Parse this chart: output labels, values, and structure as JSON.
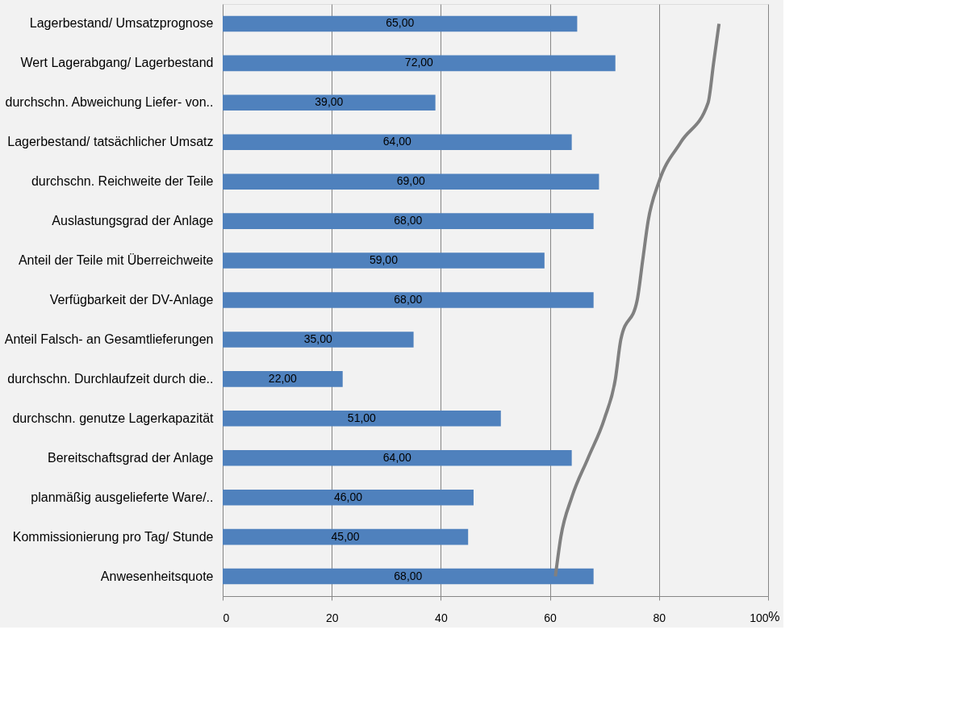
{
  "chart_data": {
    "type": "bar",
    "orientation": "horizontal",
    "xlabel": "%",
    "categories": [
      "Lagerbestand/ Umsatzprognose",
      "Wert Lagerabgang/ Lagerbestand",
      "durchschn. Abweichung Liefer- von..",
      "Lagerbestand/ tatsächlicher Umsatz",
      "durchschn. Reichweite der Teile",
      "Auslastungsgrad der Anlage",
      "Anteil der Teile mit Überreichweite",
      "Verfügbarkeit der DV-Anlage",
      "Anteil Falsch- an Gesamtlieferungen",
      "durchschn. Durchlaufzeit durch die..",
      "durchschn. genutze Lagerkapazität",
      "Bereitschaftsgrad der Anlage",
      "planmäßig ausgelieferte Ware/..",
      "Kommissionierung pro Tag/ Stunde",
      "Anwesenheitsquote"
    ],
    "series": [
      {
        "color": "#4f81bd",
        "values": [
          65,
          72,
          39,
          64,
          69,
          68,
          59,
          68,
          35,
          22,
          51,
          64,
          46,
          45,
          68
        ],
        "value_labels": [
          "65,00",
          "72,00",
          "39,00",
          "64,00",
          "69,00",
          "68,00",
          "59,00",
          "68,00",
          "35,00",
          "22,00",
          "51,00",
          "64,00",
          "46,00",
          "45,00",
          "68,00"
        ]
      },
      {
        "type": "line",
        "color": "#808080",
        "values": [
          91,
          90,
          89,
          84,
          80,
          78,
          77,
          76,
          73,
          72,
          70,
          67,
          64,
          62,
          61
        ]
      }
    ],
    "xlim": [
      0,
      100
    ],
    "xticks": [
      0,
      20,
      40,
      60,
      80,
      100
    ],
    "grid": "x"
  }
}
